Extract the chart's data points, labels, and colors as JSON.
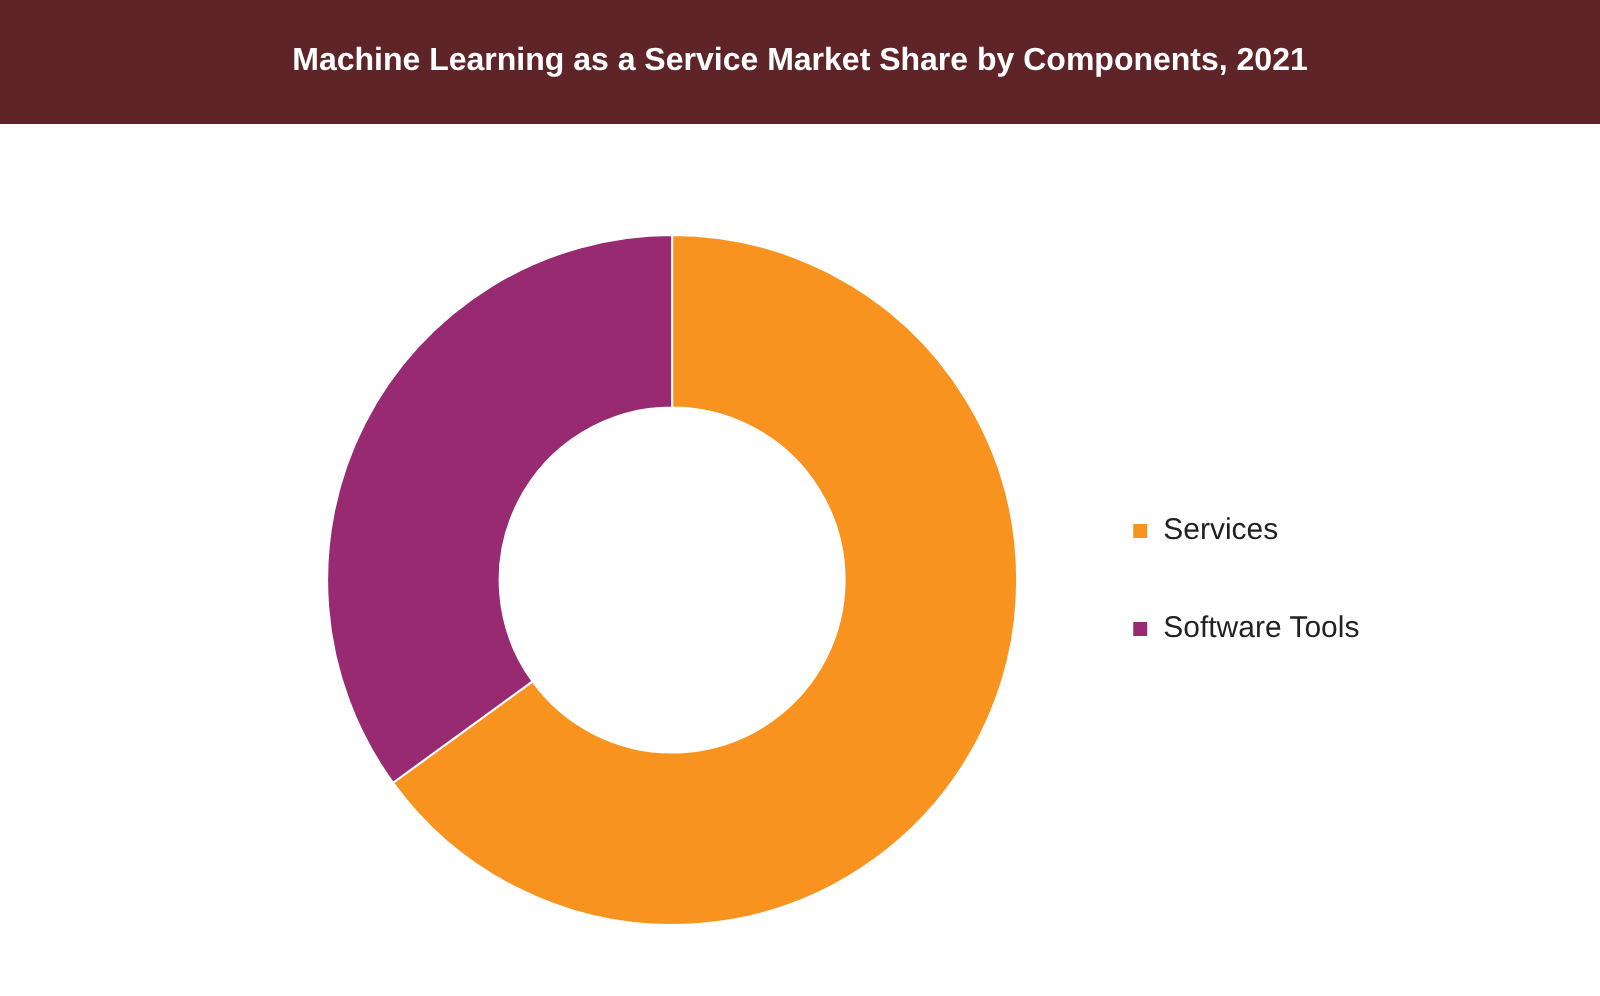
{
  "chart_data": {
    "type": "donut",
    "title": "Machine Learning as a Service Market Share by Components, 2021",
    "categories": [
      "Services",
      "Software Tools"
    ],
    "values": [
      65,
      35
    ],
    "colors": [
      "#f7931e",
      "#982a72"
    ],
    "legend": "right"
  }
}
